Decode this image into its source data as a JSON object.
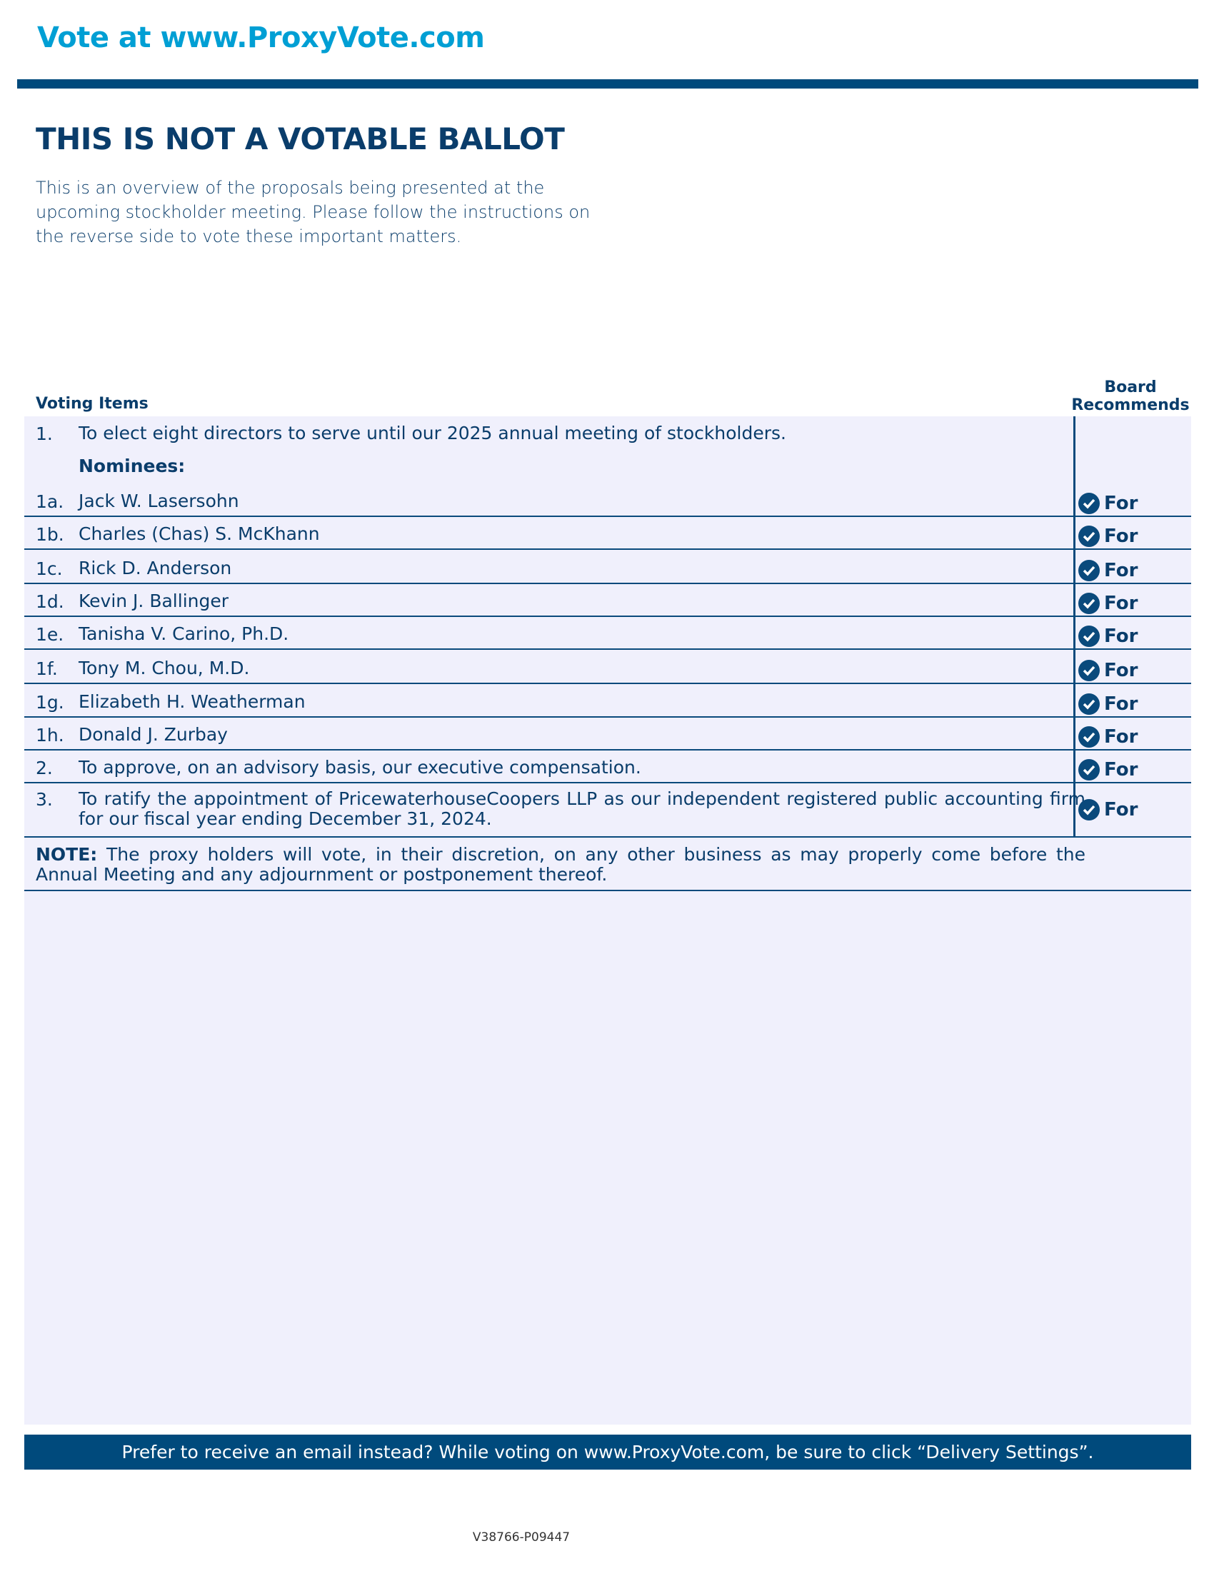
{
  "header": {
    "vote_url": "Vote at www.ProxyVote.com"
  },
  "title": "THIS IS NOT A VOTABLE BALLOT",
  "intro": "This is an overview of the proposals being presented at the upcoming stockholder meeting. Please follow the instructions on the reverse side to vote these important matters.",
  "table": {
    "voting_items_label": "Voting Items",
    "board_label_1": "Board",
    "board_label_2": "Recommends",
    "item1": {
      "num": "1.",
      "text": "To elect eight directors to serve until our 2025 annual meeting of stockholders."
    },
    "nominees_label": "Nominees:",
    "rows": [
      {
        "num": "1a.",
        "text": "Jack W. Lasersohn",
        "rec": "For"
      },
      {
        "num": "1b.",
        "text": "Charles (Chas) S. McKhann",
        "rec": "For"
      },
      {
        "num": "1c.",
        "text": "Rick D. Anderson",
        "rec": "For"
      },
      {
        "num": "1d.",
        "text": "Kevin J. Ballinger",
        "rec": "For"
      },
      {
        "num": "1e.",
        "text": "Tanisha V. Carino, Ph.D.",
        "rec": "For"
      },
      {
        "num": "1f.",
        "text": "Tony M. Chou, M.D.",
        "rec": "For"
      },
      {
        "num": "1g.",
        "text": "Elizabeth H. Weatherman",
        "rec": "For"
      },
      {
        "num": "1h.",
        "text": "Donald J. Zurbay",
        "rec": "For"
      },
      {
        "num": "2.",
        "text": "To approve, on an advisory basis, our executive compensation.",
        "rec": "For"
      },
      {
        "num": "3.",
        "text": "To ratify the appointment of PricewaterhouseCoopers LLP as our independent registered public accounting firm for our fiscal year ending December 31, 2024.",
        "rec": "For"
      }
    ],
    "note_label": "NOTE:",
    "note_text": "The proxy holders will vote, in their discretion, on any other business as may properly come before the Annual Meeting and any adjournment or postponement thereof."
  },
  "banner": "Prefer to receive an email instead? While voting on www.ProxyVote.com, be sure to click “Delivery Settings”.",
  "code": "V38766-P09447",
  "colors": {
    "accent": "#009fd4",
    "navy": "#004a7c",
    "panel": "#f0f0fc"
  }
}
